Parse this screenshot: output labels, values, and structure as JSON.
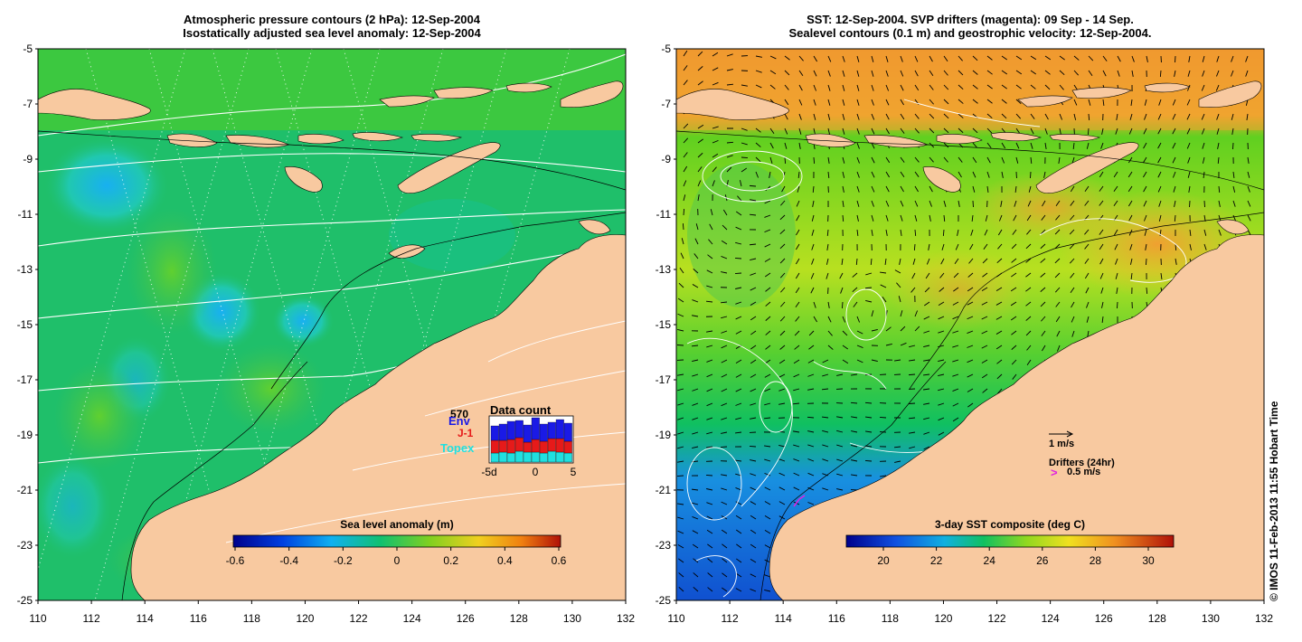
{
  "left_panel": {
    "title_line1": "Atmospheric pressure contours (2 hPa): 12-Sep-2004",
    "title_line2": "Isostatically adjusted sea level anomaly: 12-Sep-2004",
    "colorbar": {
      "title": "Sea level anomaly (m)",
      "ticks": [
        "-0.6",
        "-0.4",
        "-0.2",
        "0",
        "0.2",
        "0.4",
        "0.6"
      ]
    },
    "data_count": {
      "title": "Data count",
      "max_label": "570",
      "env_label": "Env",
      "j1_label": "J-1",
      "topex_label": "Topex",
      "x_ticks": [
        "-5d",
        "0",
        "5"
      ],
      "env_color": "#1a1ae6",
      "j1_color": "#e61a1a",
      "topex_color": "#20e0e0",
      "bars": [
        {
          "topex": 0.2,
          "j1": 0.28,
          "env": 0.32
        },
        {
          "topex": 0.22,
          "j1": 0.26,
          "env": 0.36
        },
        {
          "topex": 0.2,
          "j1": 0.3,
          "env": 0.4
        },
        {
          "topex": 0.24,
          "j1": 0.3,
          "env": 0.38
        },
        {
          "topex": 0.22,
          "j1": 0.22,
          "env": 0.38
        },
        {
          "topex": 0.22,
          "j1": 0.28,
          "env": 0.48
        },
        {
          "topex": 0.2,
          "j1": 0.26,
          "env": 0.38
        },
        {
          "topex": 0.24,
          "j1": 0.28,
          "env": 0.36
        },
        {
          "topex": 0.22,
          "j1": 0.3,
          "env": 0.42
        },
        {
          "topex": 0.2,
          "j1": 0.26,
          "env": 0.4
        }
      ]
    }
  },
  "right_panel": {
    "title_line1": "SST: 12-Sep-2004. SVP drifters (magenta): 09 Sep - 14 Sep.",
    "title_line2": "Sealevel contours (0.1 m) and geostrophic velocity: 12-Sep-2004.",
    "velocity_scale_label": "1 m/s",
    "drifters_label": "Drifters (24hr)",
    "drifter_scale_label": "0.5 m/s",
    "colorbar": {
      "title": "3-day SST composite (deg C)",
      "ticks": [
        "20",
        "22",
        "24",
        "26",
        "28",
        "30"
      ]
    }
  },
  "axes": {
    "lat_ticks": [
      "-5",
      "-7",
      "-9",
      "-11",
      "-13",
      "-15",
      "-17",
      "-19",
      "-21",
      "-23",
      "-25"
    ],
    "lon_ticks": [
      "110",
      "112",
      "114",
      "116",
      "118",
      "120",
      "122",
      "124",
      "126",
      "128",
      "130",
      "132"
    ]
  },
  "credit": "© IMOS 11-Feb-2013 11:55 Hobart Time",
  "colors": {
    "land": "#f8c9a0",
    "ocean_sla": "#1fbf6a",
    "sst_warm": "#f0a030",
    "sst_cool": "#1060e0",
    "drifter": "#e020e0"
  }
}
